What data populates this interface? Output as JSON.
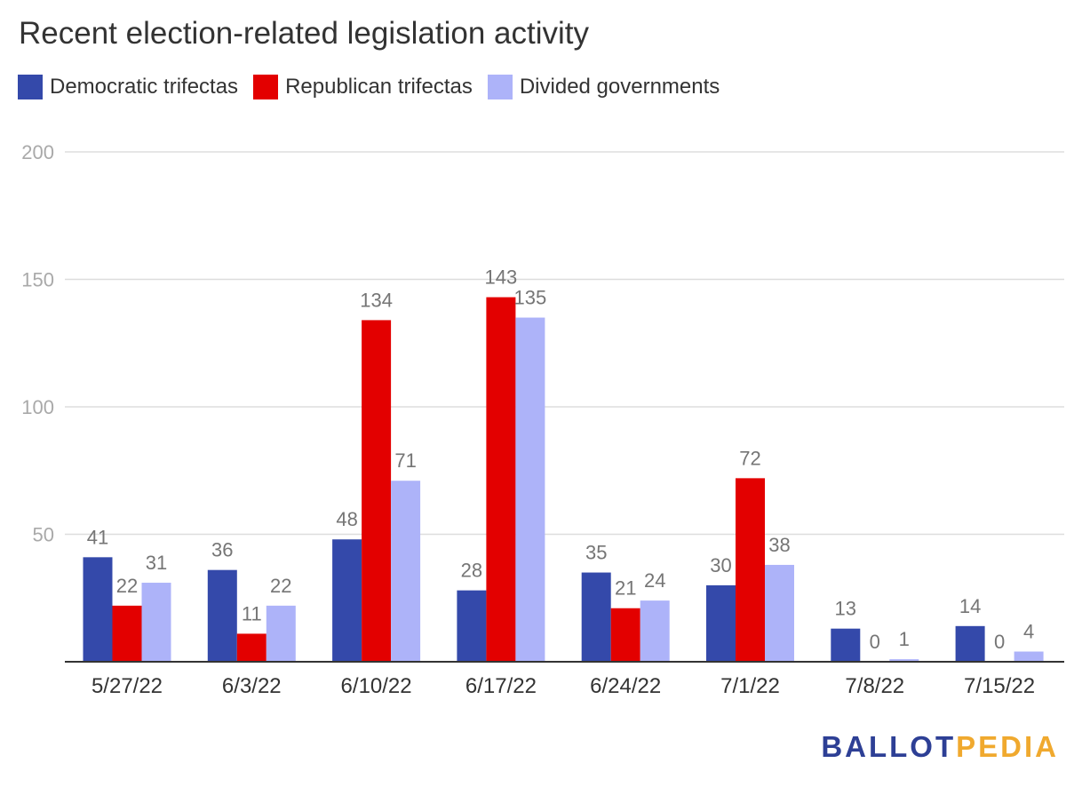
{
  "chart_data": {
    "type": "bar",
    "title": "Recent election-related legislation activity",
    "categories": [
      "5/27/22",
      "6/3/22",
      "6/10/22",
      "6/17/22",
      "6/24/22",
      "7/1/22",
      "7/8/22",
      "7/15/22"
    ],
    "series": [
      {
        "name": "Democratic trifectas",
        "color": "#3449aa",
        "values": [
          41,
          36,
          48,
          28,
          35,
          30,
          13,
          14
        ]
      },
      {
        "name": "Republican trifectas",
        "color": "#e30000",
        "values": [
          22,
          11,
          134,
          143,
          21,
          72,
          0,
          0
        ]
      },
      {
        "name": "Divided governments",
        "color": "#adb3f9",
        "values": [
          31,
          22,
          71,
          135,
          24,
          38,
          1,
          4
        ]
      }
    ],
    "ylim": [
      0,
      200
    ],
    "yticks": [
      50,
      100,
      150,
      200
    ],
    "grid": true,
    "legend_position": "top-left",
    "data_labels": true
  },
  "logo": {
    "part1": "BALLOT",
    "part2": "PEDIA",
    "part1_color": "#2d3f95",
    "part2_color": "#f0a92e"
  }
}
